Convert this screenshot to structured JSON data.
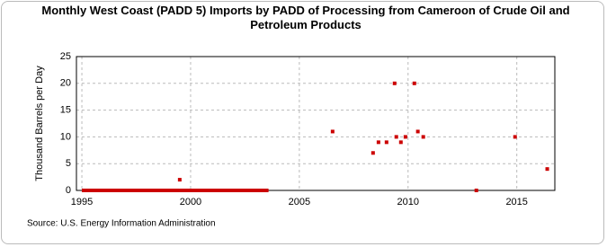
{
  "chart_data": {
    "type": "scatter",
    "title": "Monthly West Coast (PADD 5) Imports by PADD of Processing from Cameroon of Crude Oil and Petroleum Products",
    "y_label": "Thousand Barrels per Day",
    "source": "Source: U.S. Energy Information Administration",
    "color": "#cc0000",
    "grid": true,
    "xlim": [
      1994.75,
      2016.75
    ],
    "ylim": [
      0,
      25
    ],
    "xticks": [
      1995,
      2000,
      2005,
      2010,
      2015
    ],
    "yticks": [
      0,
      5,
      10,
      15,
      20,
      25
    ],
    "x": [
      1995.08,
      1995.17,
      1995.25,
      1995.33,
      1995.42,
      1995.5,
      1995.58,
      1995.67,
      1995.75,
      1995.83,
      1995.92,
      1996,
      1996.08,
      1996.17,
      1996.25,
      1996.33,
      1996.42,
      1996.5,
      1996.58,
      1996.67,
      1996.75,
      1996.83,
      1996.92,
      1997,
      1997.08,
      1997.17,
      1997.25,
      1997.33,
      1997.42,
      1997.5,
      1997.58,
      1997.67,
      1997.75,
      1997.83,
      1997.92,
      1998,
      1998.08,
      1998.17,
      1998.25,
      1998.33,
      1998.42,
      1998.5,
      1998.58,
      1998.67,
      1998.75,
      1998.83,
      1998.92,
      1999,
      1999.08,
      1999.17,
      1999.25,
      1999.33,
      1999.42,
      1999.5,
      1999.58,
      1999.67,
      1999.75,
      1999.83,
      1999.92,
      2000,
      2000.08,
      2000.17,
      2000.25,
      2000.33,
      2000.42,
      2000.5,
      2000.58,
      2000.67,
      2000.75,
      2000.83,
      2000.92,
      2001,
      2001.08,
      2001.17,
      2001.25,
      2001.33,
      2001.42,
      2001.5,
      2001.58,
      2001.67,
      2001.75,
      2001.83,
      2001.92,
      2002,
      2002.08,
      2002.17,
      2002.25,
      2002.33,
      2002.42,
      2002.5,
      2002.58,
      2002.67,
      2002.75,
      2002.83,
      2002.92,
      2003,
      2003.08,
      2003.17,
      2003.25,
      2003.33,
      2003.42,
      2003.5,
      2006.53,
      2008.39,
      2008.64,
      2009.01,
      2009.38,
      2009.46,
      2009.67,
      2009.88,
      2010.29,
      2010.45,
      2010.7,
      2013.14,
      2014.92,
      2016.4
    ],
    "values": [
      0,
      0,
      0,
      0,
      0,
      0,
      0,
      0,
      0,
      0,
      0,
      0,
      0,
      0,
      0,
      0,
      0,
      0,
      0,
      0,
      0,
      0,
      0,
      0,
      0,
      0,
      0,
      0,
      0,
      0,
      0,
      0,
      0,
      0,
      0,
      0,
      0,
      0,
      0,
      0,
      0,
      0,
      0,
      0,
      0,
      0,
      0,
      0,
      0,
      0,
      0,
      0,
      0,
      2,
      0,
      0,
      0,
      0,
      0,
      0,
      0,
      0,
      0,
      0,
      0,
      0,
      0,
      0,
      0,
      0,
      0,
      0,
      0,
      0,
      0,
      0,
      0,
      0,
      0,
      0,
      0,
      0,
      0,
      0,
      0,
      0,
      0,
      0,
      0,
      0,
      0,
      0,
      0,
      0,
      0,
      0,
      0,
      0,
      0,
      0,
      0,
      0,
      11,
      7,
      9,
      9,
      20,
      10,
      9,
      10,
      20,
      11,
      10,
      0,
      10,
      4
    ]
  }
}
